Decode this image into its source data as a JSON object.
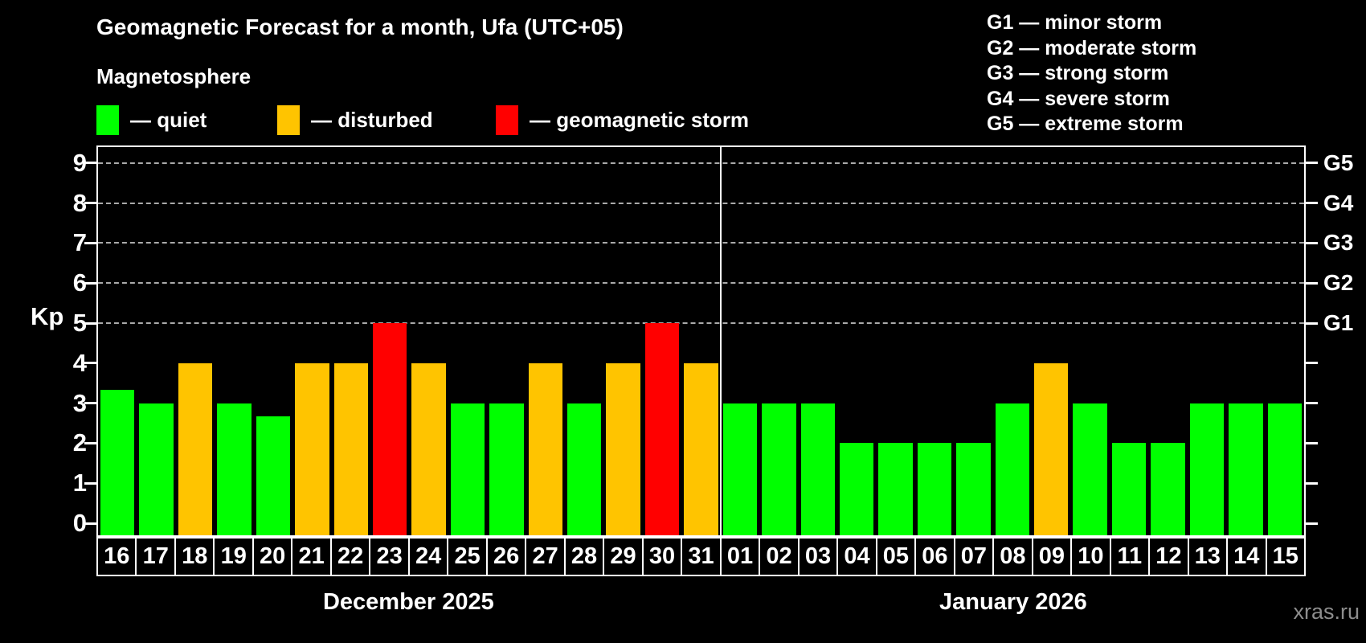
{
  "title": "Geomagnetic Forecast for a month, Ufa (UTC+05)",
  "subtitle": "Magnetosphere",
  "watermark": "xras.ru",
  "colors": {
    "quiet": "#00ff00",
    "disturbed": "#ffc400",
    "storm": "#ff0000",
    "grid": "#aaaaaa",
    "axis": "#ffffff"
  },
  "legend": [
    {
      "key": "quiet",
      "label": "— quiet"
    },
    {
      "key": "disturbed",
      "label": "— disturbed"
    },
    {
      "key": "storm",
      "label": "— geomagnetic storm"
    }
  ],
  "g_scale_legend": [
    "G1 — minor storm",
    "G2 — moderate storm",
    "G3 — strong storm",
    "G4 — severe storm",
    "G5 — extreme storm"
  ],
  "chart_data": {
    "type": "bar",
    "ylabel": "Kp",
    "ylim": [
      0,
      9.4
    ],
    "yticks": [
      0,
      1,
      2,
      3,
      4,
      5,
      6,
      7,
      8,
      9
    ],
    "gridlines_kp": [
      5,
      6,
      7,
      8,
      9
    ],
    "grid": "dashed horizontal lines at storm levels G1–G5",
    "legend_position": "top-left",
    "right_axis": [
      {
        "kp": 5,
        "label": "G1"
      },
      {
        "kp": 6,
        "label": "G2"
      },
      {
        "kp": 7,
        "label": "G3"
      },
      {
        "kp": 8,
        "label": "G4"
      },
      {
        "kp": 9,
        "label": "G5"
      }
    ],
    "months": [
      {
        "label": "December 2025",
        "days": [
          {
            "day": "16",
            "kp": 3.33,
            "status": "quiet"
          },
          {
            "day": "17",
            "kp": 3,
            "status": "quiet"
          },
          {
            "day": "18",
            "kp": 4,
            "status": "disturbed"
          },
          {
            "day": "19",
            "kp": 3,
            "status": "quiet"
          },
          {
            "day": "20",
            "kp": 2.67,
            "status": "quiet"
          },
          {
            "day": "21",
            "kp": 4,
            "status": "disturbed"
          },
          {
            "day": "22",
            "kp": 4,
            "status": "disturbed"
          },
          {
            "day": "23",
            "kp": 5,
            "status": "storm"
          },
          {
            "day": "24",
            "kp": 4,
            "status": "disturbed"
          },
          {
            "day": "25",
            "kp": 3,
            "status": "quiet"
          },
          {
            "day": "26",
            "kp": 3,
            "status": "quiet"
          },
          {
            "day": "27",
            "kp": 4,
            "status": "disturbed"
          },
          {
            "day": "28",
            "kp": 3,
            "status": "quiet"
          },
          {
            "day": "29",
            "kp": 4,
            "status": "disturbed"
          },
          {
            "day": "30",
            "kp": 5,
            "status": "storm"
          },
          {
            "day": "31",
            "kp": 4,
            "status": "disturbed"
          }
        ]
      },
      {
        "label": "January 2026",
        "days": [
          {
            "day": "01",
            "kp": 3,
            "status": "quiet"
          },
          {
            "day": "02",
            "kp": 3,
            "status": "quiet"
          },
          {
            "day": "03",
            "kp": 3,
            "status": "quiet"
          },
          {
            "day": "04",
            "kp": 2,
            "status": "quiet"
          },
          {
            "day": "05",
            "kp": 2,
            "status": "quiet"
          },
          {
            "day": "06",
            "kp": 2,
            "status": "quiet"
          },
          {
            "day": "07",
            "kp": 2,
            "status": "quiet"
          },
          {
            "day": "08",
            "kp": 3,
            "status": "quiet"
          },
          {
            "day": "09",
            "kp": 4,
            "status": "disturbed"
          },
          {
            "day": "10",
            "kp": 3,
            "status": "quiet"
          },
          {
            "day": "11",
            "kp": 2,
            "status": "quiet"
          },
          {
            "day": "12",
            "kp": 2,
            "status": "quiet"
          },
          {
            "day": "13",
            "kp": 3,
            "status": "quiet"
          },
          {
            "day": "14",
            "kp": 3,
            "status": "quiet"
          },
          {
            "day": "15",
            "kp": 3,
            "status": "quiet"
          }
        ]
      }
    ]
  }
}
